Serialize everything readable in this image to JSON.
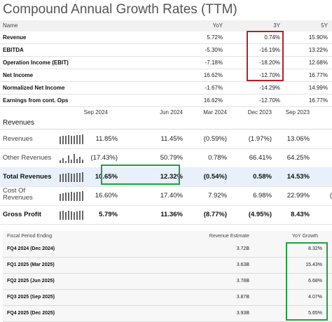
{
  "cagr": {
    "title": "Compound Annual Growth Rates (TTM)",
    "columns": [
      "Name",
      "YoY",
      "3Y",
      "5Y"
    ],
    "rows": [
      {
        "name": "Revenue",
        "yoy": "5.72%",
        "y3": "0.74%",
        "y5": "15.90%"
      },
      {
        "name": "EBITDA",
        "yoy": "-5.30%",
        "y3": "-16.19%",
        "y5": "13.22%"
      },
      {
        "name": "Operation Income (EBIT)",
        "yoy": "-7.18%",
        "y3": "-18.20%",
        "y5": "12.68%"
      },
      {
        "name": "Net Income",
        "yoy": "16.62%",
        "y3": "-12.70%",
        "y5": "16.77%"
      },
      {
        "name": "Normalized Net Income",
        "yoy": "-1.67%",
        "y3": "-14.29%",
        "y5": "14.99%"
      },
      {
        "name": "Earnings from cont. Ops",
        "yoy": "16.62%",
        "y3": "-12.70%",
        "y5": "16.77%"
      }
    ]
  },
  "financials": {
    "periods": [
      "Sep 2024",
      "Jun 2024",
      "Mar 2024",
      "Dec 2023",
      "Sep 2023"
    ],
    "section_title": "Revenues",
    "rows": [
      {
        "name": "Revenues",
        "values": [
          "11.85%",
          "11.45%",
          "(0.59%)",
          "(1.97%)",
          "13.06%"
        ]
      },
      {
        "name": "Other Revenues",
        "values": [
          "(17.43%)",
          "50.79%",
          "0.78%",
          "66.41%",
          "64.25%"
        ]
      },
      {
        "name": "Total Revenues",
        "values": [
          "10.65%",
          "12.32%",
          "(0.54%)",
          "0.58%",
          "14.53%"
        ]
      },
      {
        "name": "Cost Of Revenues",
        "values": [
          "16.60%",
          "17.40%",
          "7.92%",
          "6.98%",
          "22.99%"
        ],
        "overflow": "("
      },
      {
        "name": "Gross Profit",
        "values": [
          "5.79%",
          "11.36%",
          "(8.77%)",
          "(4.95%)",
          "8.43%"
        ]
      }
    ]
  },
  "estimates": {
    "columns": [
      "Fiscal Period Ending",
      "Revenue Estimate",
      "YoY Growth"
    ],
    "rows": [
      {
        "period": "FQ4 2024 (Dec 2024)",
        "estimate": "3.72B",
        "growth": "8.32%"
      },
      {
        "period": "FQ1 2025 (Mar 2025)",
        "estimate": "3.63B",
        "growth": "15.43%"
      },
      {
        "period": "FQ2 2025 (Jun 2025)",
        "estimate": "3.78B",
        "growth": "6.68%"
      },
      {
        "period": "FQ3 2025 (Sep 2025)",
        "estimate": "3.87B",
        "growth": "4.07%"
      },
      {
        "period": "FQ4 2025 (Dec 2025)",
        "estimate": "3.93B",
        "growth": "5.65%"
      }
    ]
  },
  "colors": {
    "highlight_red": "#b2222c",
    "highlight_green": "#1fa23c",
    "total_row_bg": "#e7f0fb"
  }
}
